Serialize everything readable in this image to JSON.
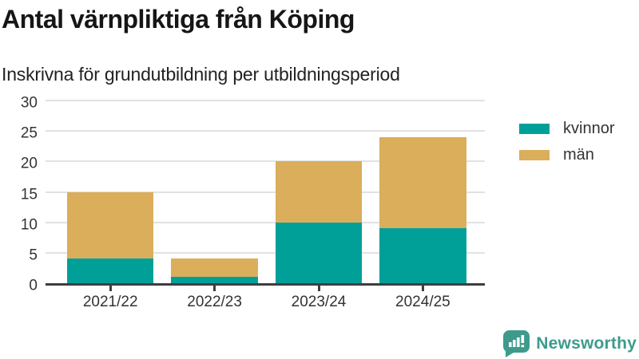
{
  "chart_data": {
    "type": "bar",
    "stacked": true,
    "title": "Antal värnpliktiga från Köping",
    "subtitle": "Inskrivna för grundutbildning per utbildningsperiod",
    "categories": [
      "2021/22",
      "2022/23",
      "2023/24",
      "2024/25"
    ],
    "series": [
      {
        "name": "kvinnor",
        "color": "#00A099",
        "values": [
          4,
          1,
          10,
          9
        ]
      },
      {
        "name": "män",
        "color": "#DBAE5C",
        "values": [
          11,
          3,
          10,
          15
        ]
      }
    ],
    "totals": [
      15,
      4,
      20,
      24
    ],
    "xlabel": "",
    "ylabel": "",
    "ylim": [
      0,
      30
    ],
    "yticks": [
      0,
      5,
      10,
      15,
      20,
      25,
      30
    ],
    "grid": true,
    "grid_color": "#e2e2e2",
    "axis_color": "#3e3e3e",
    "tick_text_color": "#333333",
    "legend_position": "right"
  },
  "footer": {
    "brand": "Newsworthy",
    "brand_color": "#3E9B8C",
    "logo_icon": "bar-chart-speech-bubble-icon"
  }
}
